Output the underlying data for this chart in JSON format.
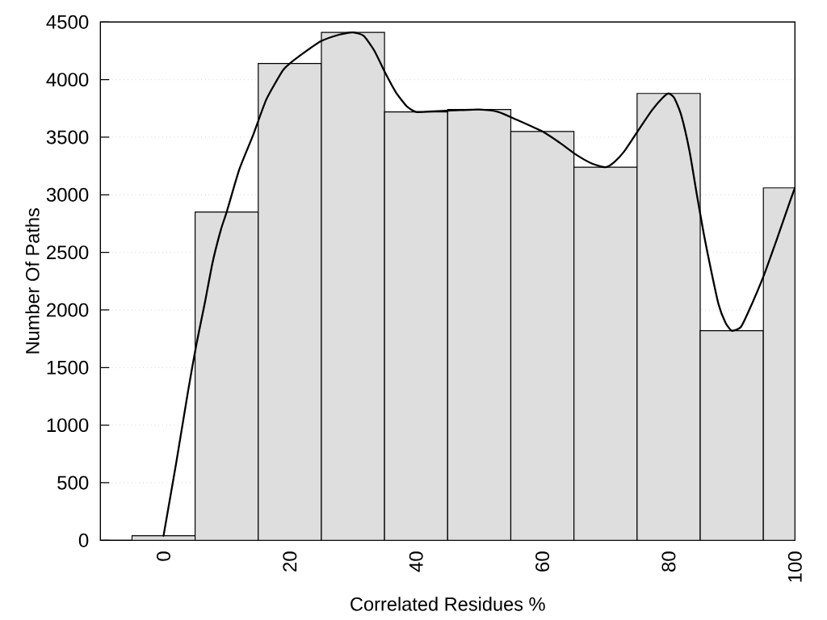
{
  "chart_data": {
    "type": "histogram",
    "xlabel": "Correlated Residues %",
    "ylabel": "Number Of Paths",
    "bins": [
      -5,
      5,
      15,
      25,
      35,
      45,
      55,
      65,
      75,
      85,
      95,
      100
    ],
    "values": [
      40,
      2850,
      4140,
      4410,
      3720,
      3740,
      3550,
      3240,
      3880,
      1820,
      3060
    ],
    "color": "#dedede",
    "xlim": [
      -10,
      100
    ],
    "ylim": [
      0,
      4500
    ],
    "xticks": [
      0,
      20,
      40,
      60,
      80,
      100
    ],
    "yticks": [
      0,
      500,
      1000,
      1500,
      2000,
      2500,
      3000,
      3500,
      4000,
      4500
    ],
    "grid": "y",
    "series": [
      {
        "type": "line",
        "color": "#000000",
        "line_style": "solid",
        "x": [
          0,
          2,
          3.9,
          5.2,
          6.5,
          7.8,
          9.1,
          10,
          12,
          14.2,
          16.3,
          18.9,
          20,
          21.4,
          24.8,
          27.8,
          30,
          31.7,
          33.4,
          35.1,
          36.8,
          38.5,
          40,
          42.8,
          47,
          50,
          53,
          56,
          60,
          62.8,
          65.3,
          67.9,
          70,
          71.3,
          73,
          75.2,
          77.3,
          79,
          80,
          80.9,
          82,
          83.3,
          84.5,
          85.6,
          86.7,
          87.9,
          89,
          90,
          91.4,
          92.6,
          95,
          97.3,
          99.2,
          100
        ],
        "values": [
          40,
          670,
          1300,
          1700,
          2050,
          2420,
          2700,
          2850,
          3220,
          3520,
          3830,
          4080,
          4140,
          4200,
          4330,
          4390,
          4410,
          4380,
          4250,
          4060,
          3890,
          3770,
          3720,
          3725,
          3735,
          3740,
          3720,
          3650,
          3550,
          3450,
          3350,
          3270,
          3240,
          3280,
          3380,
          3560,
          3730,
          3840,
          3880,
          3840,
          3690,
          3380,
          2990,
          2650,
          2350,
          2050,
          1890,
          1820,
          1850,
          1980,
          2290,
          2640,
          2940,
          3060
        ]
      }
    ]
  }
}
